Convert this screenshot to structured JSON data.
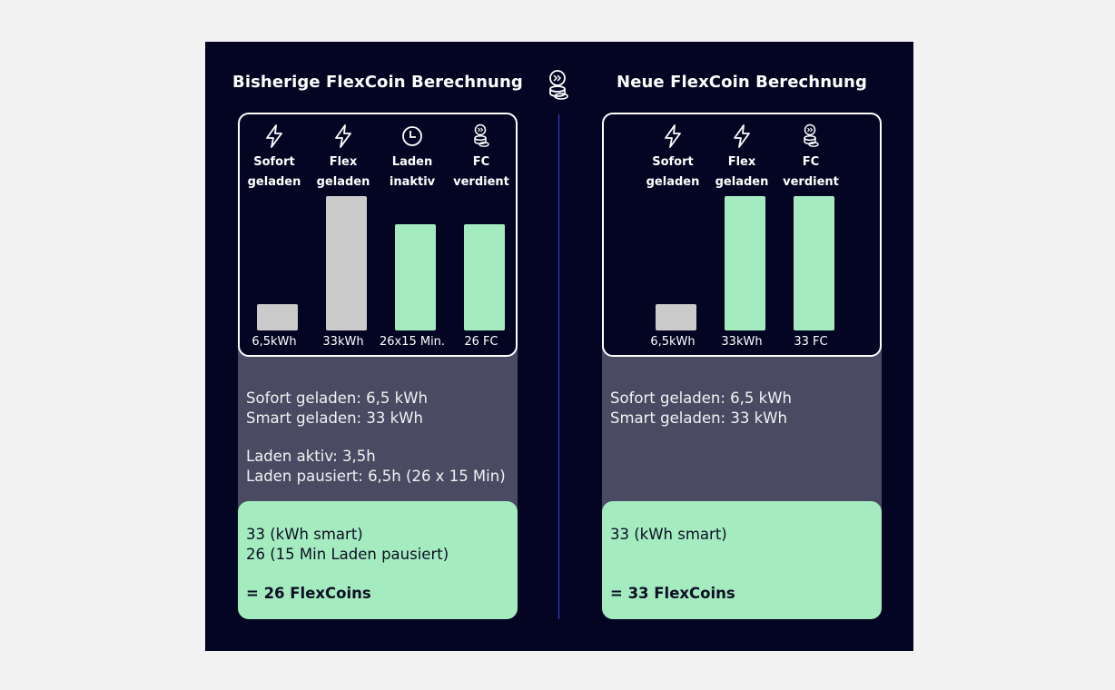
{
  "left": {
    "title": "Bisherige FlexCoin Berechnung",
    "details": [
      "Sofort geladen: 6,5 kWh",
      "Smart geladen: 33 kWh",
      "",
      "Laden aktiv: 3,5h",
      "Laden pausiert: 6,5h (26 x 15 Min)"
    ],
    "formula": [
      "33 (kWh smart)",
      "26 (15 Min Laden pausiert)"
    ],
    "result": "= 26 FlexCoins"
  },
  "right": {
    "title": "Neue FlexCoin Berechnung",
    "details": [
      "Sofort geladen: 6,5 kWh",
      "Smart geladen: 33 kWh"
    ],
    "formula": [
      "33 (kWh smart)"
    ],
    "result": "= 33 FlexCoins"
  },
  "chart_data": [
    {
      "type": "bar",
      "categories": [
        "Sofort geladen",
        "Flex geladen",
        "Laden inaktiv",
        "FC verdient"
      ],
      "category_lines": [
        [
          "Sofort",
          "geladen"
        ],
        [
          "Flex",
          "geladen"
        ],
        [
          "Laden",
          "inaktiv"
        ],
        [
          "FC",
          "verdient"
        ]
      ],
      "icons": [
        "lightning-icon",
        "lightning-icon",
        "clock-icon",
        "flexcoin-icon"
      ],
      "values": [
        6.5,
        33,
        26,
        26
      ],
      "value_labels": [
        "6,5kWh",
        "33kWh",
        "26x15 Min.",
        "26 FC"
      ],
      "bar_colors": [
        "#cbcbcb",
        "#cbcbcb",
        "#a4ecc0",
        "#a4ecc0"
      ],
      "ylim": [
        0,
        33
      ]
    },
    {
      "type": "bar",
      "categories": [
        "Sofort geladen",
        "Flex geladen",
        "FC verdient"
      ],
      "category_lines": [
        [
          "Sofort",
          "geladen"
        ],
        [
          "Flex",
          "geladen"
        ],
        [
          "FC",
          "verdient"
        ]
      ],
      "icons": [
        "lightning-icon",
        "lightning-icon",
        "flexcoin-icon"
      ],
      "values": [
        6.5,
        33,
        33
      ],
      "value_labels": [
        "6,5kWh",
        "33kWh",
        "33 FC"
      ],
      "bar_colors": [
        "#cbcbcb",
        "#a4ecc0",
        "#a4ecc0"
      ],
      "ylim": [
        0,
        33
      ]
    }
  ],
  "colors": {
    "background": "#040522",
    "page": "#f2f2f2",
    "grey_panel": "#4a4b62",
    "green": "#a4ecc0",
    "bar_grey": "#cbcbcb",
    "divider": "#3a46d6"
  }
}
